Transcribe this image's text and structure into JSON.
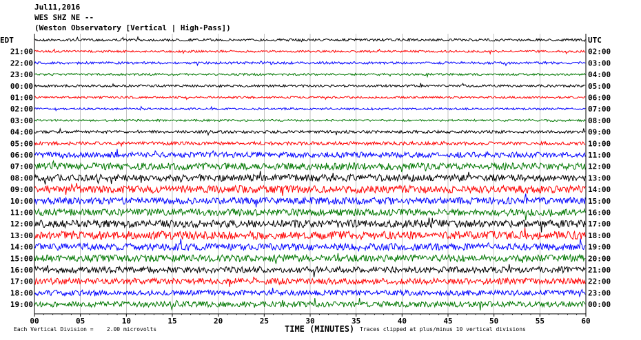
{
  "header": {
    "date": "Jul11,2016",
    "station": "WES SHZ NE --",
    "observatory": "(Weston Observatory [Vertical | High-Pass])"
  },
  "chart_data": {
    "type": "line",
    "title": "WES SHZ NE --",
    "left_axis_title": "EDT",
    "right_axis_title": "UTC",
    "xlabel": "TIME (MINUTES)",
    "xlim": [
      0,
      60
    ],
    "x_ticks": [
      "00",
      "05",
      "10",
      "15",
      "20",
      "25",
      "30",
      "35",
      "40",
      "45",
      "50",
      "55",
      "60"
    ],
    "trace_colors": [
      "#000000",
      "#ff0000",
      "#0000ff",
      "#007700"
    ],
    "rows": [
      {
        "local": "",
        "utc": "UTC",
        "amp": 0.35
      },
      {
        "local": "21:00",
        "utc": "02:00",
        "amp": 0.3
      },
      {
        "local": "22:00",
        "utc": "03:00",
        "amp": 0.35
      },
      {
        "local": "23:00",
        "utc": "04:00",
        "amp": 0.3
      },
      {
        "local": "00:00",
        "utc": "05:00",
        "amp": 0.35
      },
      {
        "local": "01:00",
        "utc": "06:00",
        "amp": 0.3
      },
      {
        "local": "02:00",
        "utc": "07:00",
        "amp": 0.3
      },
      {
        "local": "03:00",
        "utc": "08:00",
        "amp": 0.3
      },
      {
        "local": "04:00",
        "utc": "09:00",
        "amp": 0.4
      },
      {
        "local": "05:00",
        "utc": "10:00",
        "amp": 0.5
      },
      {
        "local": "06:00",
        "utc": "11:00",
        "amp": 0.8
      },
      {
        "local": "07:00",
        "utc": "12:00",
        "amp": 1.0
      },
      {
        "local": "08:00",
        "utc": "13:00",
        "amp": 1.0
      },
      {
        "local": "09:00",
        "utc": "14:00",
        "amp": 1.1
      },
      {
        "local": "10:00",
        "utc": "15:00",
        "amp": 1.0
      },
      {
        "local": "11:00",
        "utc": "16:00",
        "amp": 1.0
      },
      {
        "local": "12:00",
        "utc": "17:00",
        "amp": 1.1
      },
      {
        "local": "13:00",
        "utc": "18:00",
        "amp": 1.2
      },
      {
        "local": "14:00",
        "utc": "19:00",
        "amp": 1.0
      },
      {
        "local": "15:00",
        "utc": "20:00",
        "amp": 1.0
      },
      {
        "local": "16:00",
        "utc": "21:00",
        "amp": 0.9
      },
      {
        "local": "17:00",
        "utc": "22:00",
        "amp": 0.9
      },
      {
        "local": "18:00",
        "utc": "23:00",
        "amp": 0.8
      },
      {
        "local": "19:00",
        "utc": "00:00",
        "amp": 0.8
      }
    ]
  },
  "footer": {
    "vertical_division": "Each Vertical Division =    2.00 microvolts",
    "clip_note": "Traces clipped at plus/minus 10 vertical divisions"
  }
}
